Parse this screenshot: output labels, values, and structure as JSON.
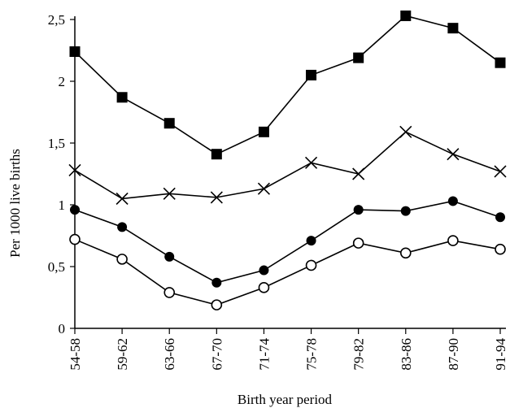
{
  "chart_data": {
    "type": "line",
    "title": "",
    "xlabel": "Birth year period",
    "ylabel": "Per 1000 live births",
    "categories": [
      "54-58",
      "59-62",
      "63-66",
      "67-70",
      "71-74",
      "75-78",
      "79-82",
      "83-86",
      "87-90",
      "91-94"
    ],
    "ylim": [
      0,
      2.5
    ],
    "yticks": [
      {
        "value": 0,
        "label": "0"
      },
      {
        "value": 0.5,
        "label": "0,5"
      },
      {
        "value": 1,
        "label": "1"
      },
      {
        "value": 1.5,
        "label": "1,5"
      },
      {
        "value": 2,
        "label": "2"
      },
      {
        "value": 2.5,
        "label": "2,5"
      }
    ],
    "grid": false,
    "legend": "none",
    "series": [
      {
        "marker": "filled-square",
        "color": "#000000",
        "values": [
          2.24,
          1.87,
          1.66,
          1.41,
          1.59,
          2.05,
          2.19,
          2.53,
          2.43,
          2.15
        ]
      },
      {
        "marker": "cross",
        "color": "#000000",
        "values": [
          1.28,
          1.05,
          1.09,
          1.06,
          1.13,
          1.34,
          1.25,
          1.59,
          1.41,
          1.27
        ]
      },
      {
        "marker": "filled-circle",
        "color": "#000000",
        "values": [
          0.96,
          0.82,
          0.58,
          0.37,
          0.47,
          0.71,
          0.96,
          0.95,
          1.03,
          0.9
        ]
      },
      {
        "marker": "open-circle",
        "color": "#000000",
        "values": [
          0.72,
          0.56,
          0.29,
          0.19,
          0.33,
          0.51,
          0.69,
          0.61,
          0.71,
          0.64
        ]
      }
    ]
  }
}
